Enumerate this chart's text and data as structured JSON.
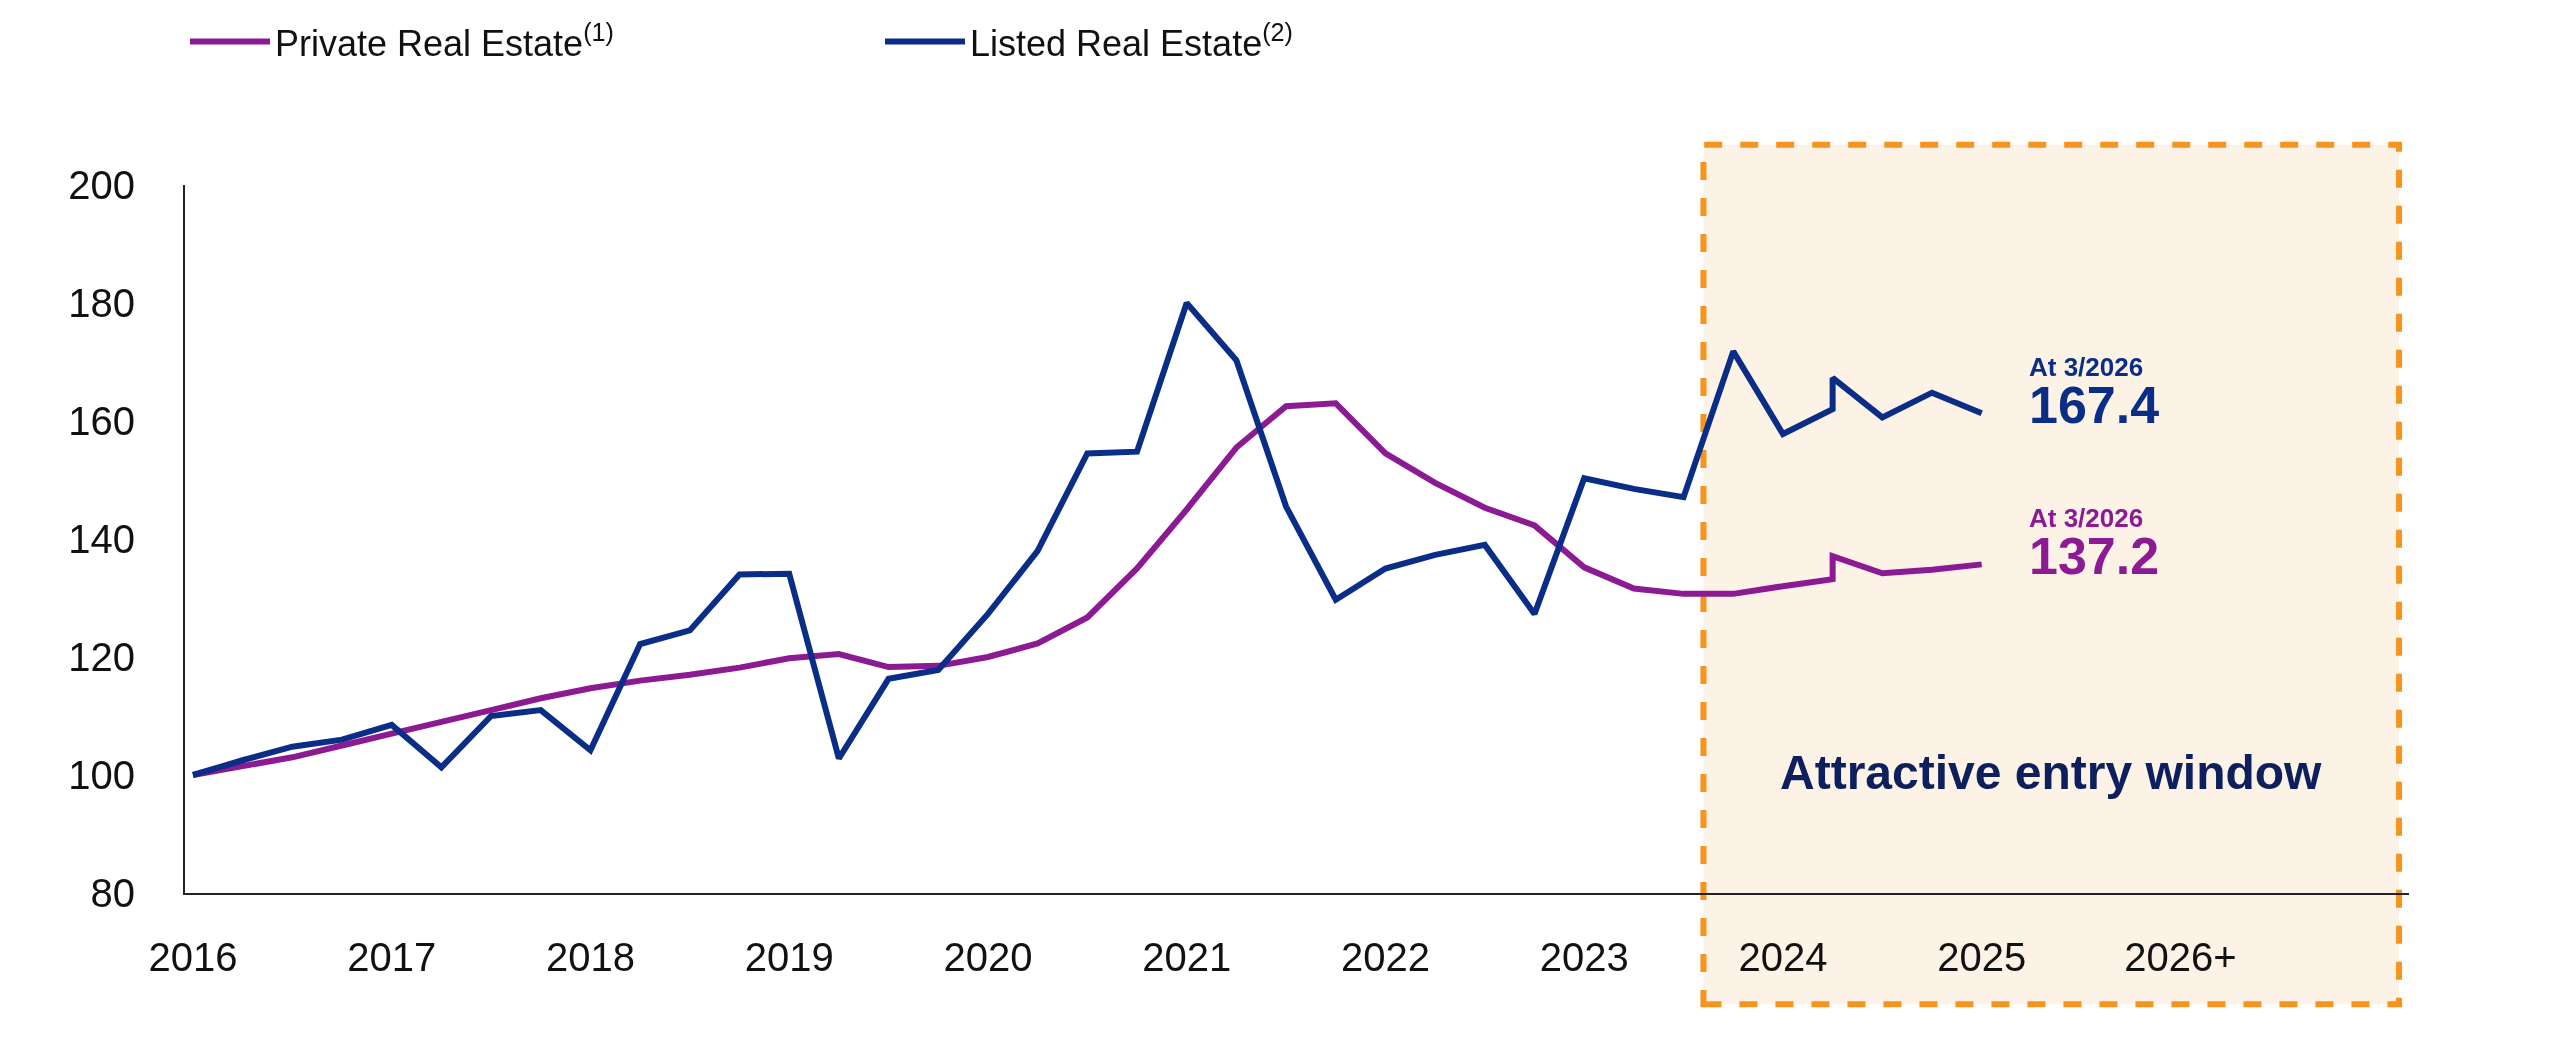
{
  "chart_data": {
    "type": "line",
    "series": [
      {
        "name": "Private Real Estate$^{(1)}$",
        "color": "#8b1a93",
        "x": [
          2016,
          2016.25,
          2016.5,
          2016.75,
          2017,
          2017.25,
          2017.5,
          2017.75,
          2018,
          2018.25,
          2018.5,
          2018.75,
          2019,
          2019.25,
          2019.5,
          2019.75,
          2020,
          2020.25,
          2020.5,
          2020.75,
          2021,
          2021.25,
          2021.5,
          2021.75,
          2022,
          2022.25,
          2022.5,
          2022.75,
          2023,
          2023.25,
          2023.5,
          2023.75,
          2024,
          2024.25,
          2024.25,
          2024.5,
          2024.75,
          2025
        ],
        "values": [
          100,
          101.5,
          103,
          105,
          107,
          109,
          111,
          113,
          114.7,
          116,
          117,
          118.2,
          119.8,
          120.5,
          118.3,
          118.5,
          120,
          122.3,
          126.7,
          135,
          145,
          155.5,
          162.5,
          163,
          154.5,
          149.5,
          145.3,
          142.3,
          135.2,
          131.6,
          130.7,
          130.7,
          132,
          133.2,
          137.1,
          134.2,
          134.8,
          135.7
        ]
      },
      {
        "name": "Listed Real Estate$^{(2)}$",
        "color": "#0a2d87",
        "x": [
          2016,
          2016.25,
          2016.5,
          2016.75,
          2017,
          2017.25,
          2017.5,
          2017.75,
          2018,
          2018.25,
          2018.5,
          2018.75,
          2019,
          2019.25,
          2019.5,
          2019.75,
          2020,
          2020.25,
          2020.5,
          2020.75,
          2021,
          2021.25,
          2021.5,
          2021.75,
          2022,
          2022.25,
          2022.5,
          2022.75,
          2023,
          2023.25,
          2023.5,
          2023.75,
          2024,
          2024.25,
          2024.25,
          2024.5,
          2024.75,
          2025
        ],
        "values": [
          100,
          102.5,
          104.8,
          106,
          108.5,
          101.3,
          110,
          111,
          104.2,
          122.2,
          124.5,
          134,
          134.1,
          102.8,
          116.3,
          117.8,
          127.3,
          138,
          154.5,
          154.8,
          180,
          170.3,
          145.5,
          129.7,
          135,
          137.3,
          139,
          127.3,
          150.3,
          148.5,
          147.1,
          171.8,
          157.8,
          162,
          167.3,
          160.6,
          164.8,
          161.3
        ]
      }
    ],
    "xlim": [
      2015.96,
      2027.15
    ],
    "xticks": [
      2016,
      2017,
      2018,
      2019,
      2020,
      2021,
      2022,
      2023,
      2024,
      2025,
      {
        "value": 2026,
        "label": "2026+"
      }
    ],
    "ylim": [
      80,
      200
    ],
    "yticks": [
      80,
      100,
      120,
      140,
      160,
      180,
      200
    ],
    "bands": [
      {
        "axis": "x",
        "from": 2023.6,
        "to": 2027.1,
        "label": "Attractive entry window",
        "color": "#fdf2e6"
      }
    ],
    "annotations": [
      {
        "text": "At 3/2026\n167.4",
        "x": 2025,
        "y": 161.3
      },
      {
        "text": "At 3/2026\n137.2",
        "x": 2025,
        "y": 135.7
      }
    ],
    "grid": false,
    "legend": "top left",
    "marker": "none",
    "line_style": "solid"
  }
}
